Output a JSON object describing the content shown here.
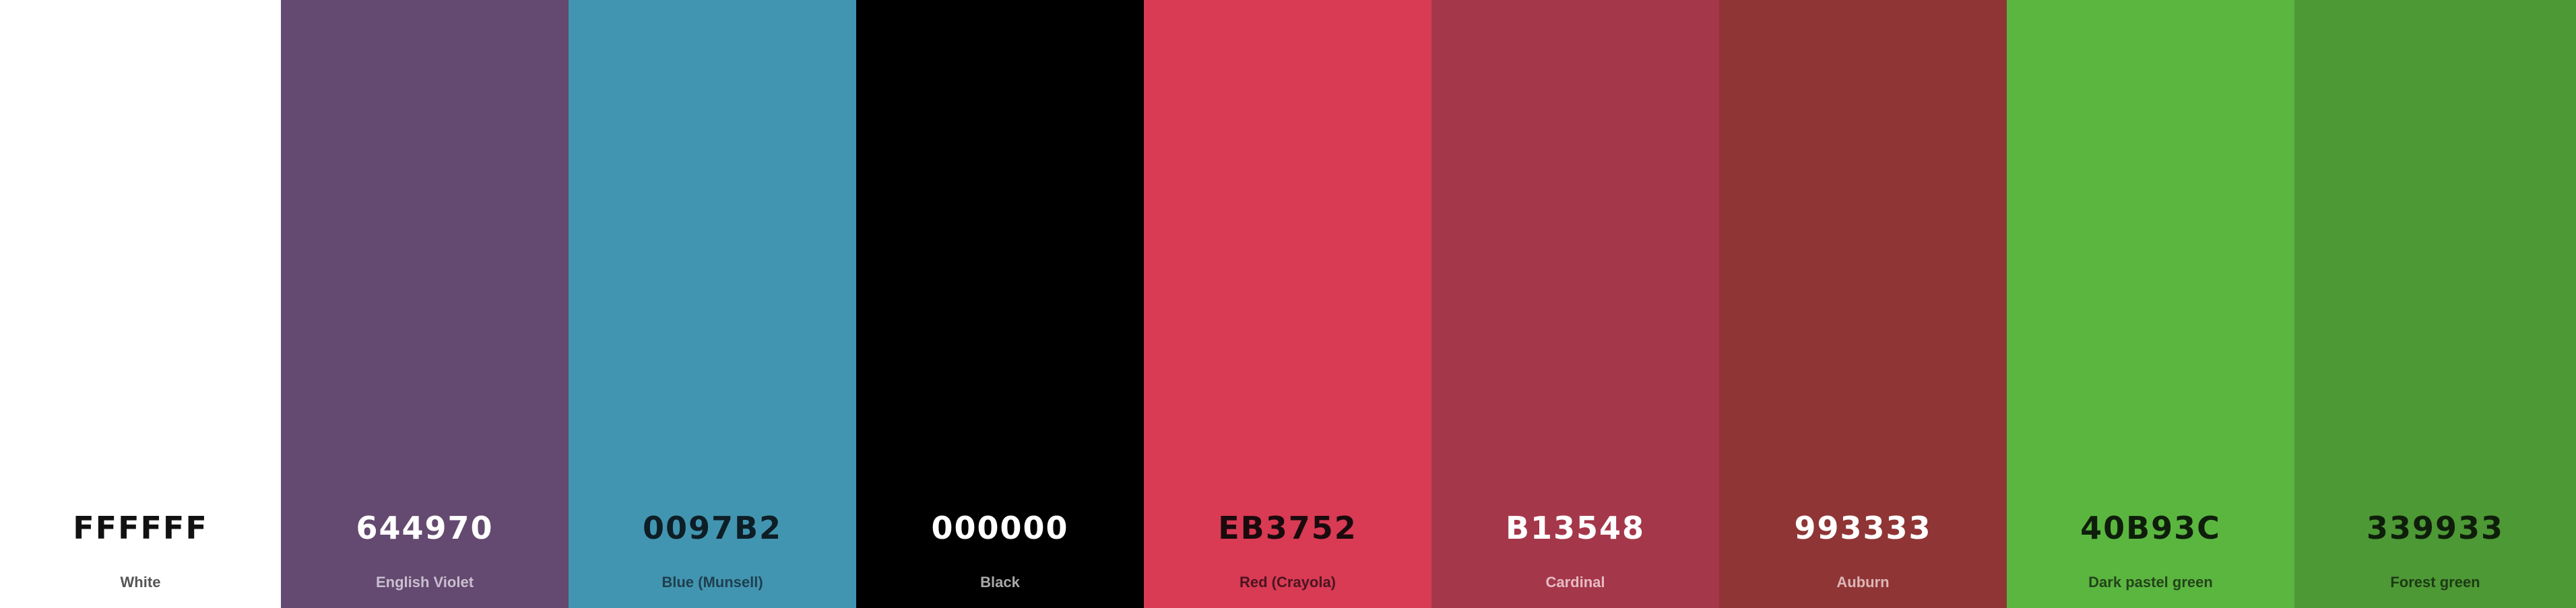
{
  "palette": {
    "swatches": [
      {
        "hex": "FFFFFF",
        "name": "White",
        "color": "#FFFFFF",
        "hex_color": "#111111",
        "name_color": "#555555"
      },
      {
        "hex": "644970",
        "name": "English Violet",
        "color": "#644970",
        "hex_color": "#FFFFFF",
        "name_color": "#C9BFCF"
      },
      {
        "hex": "0097B2",
        "name": "Blue (Munsell)",
        "color": "#4295B0",
        "hex_color": "#0E1E26",
        "name_color": "#1F3F4F"
      },
      {
        "hex": "000000",
        "name": "Black",
        "color": "#000000",
        "hex_color": "#FFFFFF",
        "name_color": "#A8A8A8"
      },
      {
        "hex": "EB3752",
        "name": "Red (Crayola)",
        "color": "#D93A54",
        "hex_color": "#1A0A0D",
        "name_color": "#4A1520"
      },
      {
        "hex": "B13548",
        "name": "Cardinal",
        "color": "#A5374A",
        "hex_color": "#FFFFFF",
        "name_color": "#E5BDC4"
      },
      {
        "hex": "993333",
        "name": "Auburn",
        "color": "#8F3536",
        "hex_color": "#FFFFFF",
        "name_color": "#DDB7B7"
      },
      {
        "hex": "40B93C",
        "name": "Dark pastel green",
        "color": "#5BB640",
        "hex_color": "#0F1E0B",
        "name_color": "#24441A"
      },
      {
        "hex": "339933",
        "name": "Forest green",
        "color": "#4D9935",
        "hex_color": "#0F1E0B",
        "name_color": "#1E3A15"
      }
    ]
  }
}
